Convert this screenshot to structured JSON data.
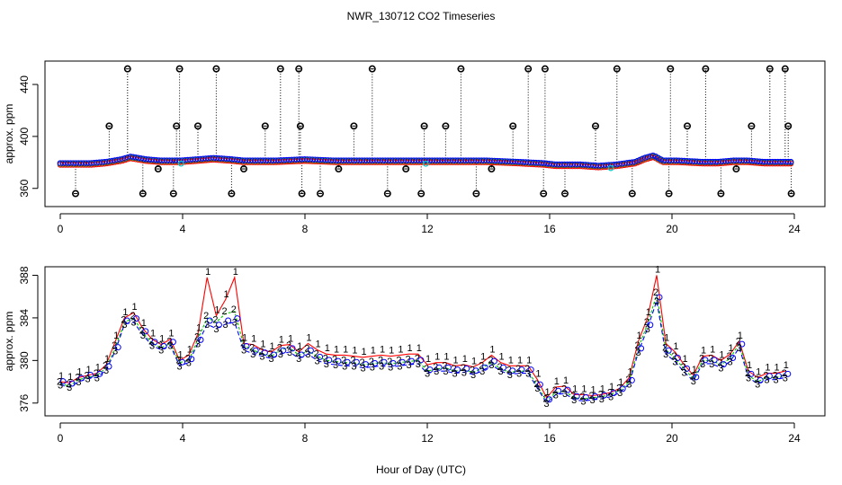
{
  "figure": {
    "title": "NWR_130712  CO2 Timeseries",
    "xlabel": "Hour of Day (UTC)"
  },
  "colors": {
    "series1": "#ff0000",
    "series2": "#00cc00",
    "series3": "#0000ff",
    "flagged": "#00cccc",
    "outlier": "#000000",
    "axis": "#000000"
  },
  "chart_data": [
    {
      "type": "scatter",
      "panel": "top",
      "ylabel": "approx. ppm",
      "xlim": [
        -0.5,
        25
      ],
      "ylim": [
        346,
        458
      ],
      "xticks": [
        0,
        4,
        8,
        12,
        16,
        20,
        24
      ],
      "yticks": [
        360,
        400,
        440
      ],
      "baseline_series": [
        {
          "name": "1",
          "x": [
            0,
            0.5,
            1,
            1.5,
            2,
            2.3,
            2.8,
            3.3,
            3.9,
            4.5,
            5,
            5.6,
            6,
            7,
            8,
            9,
            10,
            11,
            12,
            13,
            14,
            15,
            15.8,
            16.2,
            17,
            17.6,
            18.2,
            18.8,
            19.1,
            19.4,
            19.7,
            20.2,
            21,
            21.5,
            22,
            22.5,
            23,
            23.8
          ],
          "y": [
            379,
            379,
            379,
            380,
            382,
            384,
            382,
            381,
            381,
            382,
            383,
            382,
            381,
            381,
            382,
            381,
            381,
            381,
            381,
            381,
            381,
            380,
            379,
            378,
            378,
            377,
            378,
            380,
            383,
            385,
            381,
            381,
            380,
            380,
            381,
            381,
            380,
            380
          ]
        }
      ],
      "outliers": {
        "x": [
          0.5,
          1.6,
          2.2,
          2.7,
          3.2,
          3.7,
          3.8,
          3.9,
          4.5,
          5.1,
          5.6,
          6,
          6.7,
          7.2,
          7.8,
          7.85,
          7.9,
          8.5,
          9.1,
          9.6,
          10.2,
          10.7,
          11.3,
          11.8,
          11.9,
          12.6,
          13.1,
          13.6,
          14.1,
          14.8,
          15.3,
          15.8,
          15.85,
          16.5,
          17.5,
          18.2,
          18.7,
          19.9,
          19.95,
          20.5,
          21.1,
          21.6,
          22.1,
          22.6,
          23.2,
          23.7,
          23.8,
          23.9
        ],
        "y": [
          356,
          408,
          452,
          356,
          375,
          356,
          408,
          452,
          408,
          452,
          356,
          375,
          408,
          452,
          452,
          408,
          356,
          356,
          375,
          408,
          452,
          356,
          375,
          356,
          408,
          408,
          452,
          356,
          375,
          408,
          452,
          356,
          452,
          356,
          408,
          452,
          356,
          356,
          452,
          408,
          452,
          356,
          375,
          408,
          452,
          452,
          408,
          356
        ]
      }
    },
    {
      "type": "line",
      "panel": "bottom",
      "ylabel": "approx. ppm",
      "xlim": [
        -0.5,
        25
      ],
      "ylim": [
        374.8,
        388.8
      ],
      "xticks": [
        0,
        4,
        8,
        12,
        16,
        20,
        24
      ],
      "yticks": [
        376,
        380,
        384,
        388
      ],
      "x": [
        0,
        0.3,
        0.6,
        0.9,
        1.2,
        1.5,
        1.8,
        2.1,
        2.4,
        2.7,
        3.0,
        3.3,
        3.6,
        3.9,
        4.2,
        4.5,
        4.8,
        5.1,
        5.4,
        5.7,
        6.0,
        6.3,
        6.6,
        6.9,
        7.2,
        7.5,
        7.8,
        8.1,
        8.4,
        8.7,
        9.0,
        9.3,
        9.6,
        9.9,
        10.2,
        10.5,
        10.8,
        11.1,
        11.4,
        11.7,
        12.0,
        12.3,
        12.6,
        12.9,
        13.2,
        13.5,
        13.8,
        14.1,
        14.4,
        14.7,
        15.0,
        15.3,
        15.6,
        15.9,
        16.2,
        16.5,
        16.8,
        17.1,
        17.4,
        17.7,
        18.0,
        18.3,
        18.6,
        18.9,
        19.2,
        19.5,
        19.8,
        20.1,
        20.4,
        20.7,
        21.0,
        21.3,
        21.6,
        21.9,
        22.2,
        22.5,
        22.8,
        23.1,
        23.4,
        23.7
      ],
      "series": [
        {
          "name": "1",
          "values": [
            378.0,
            377.9,
            378.4,
            378.6,
            378.8,
            379.6,
            381.8,
            384.0,
            384.5,
            383.0,
            382.0,
            381.5,
            382.0,
            380.0,
            380.5,
            382.5,
            387.8,
            384.2,
            385.7,
            387.8,
            381.6,
            381.5,
            381.0,
            380.8,
            381.4,
            381.5,
            380.8,
            381.6,
            381.0,
            380.6,
            380.5,
            380.5,
            380.4,
            380.3,
            380.4,
            380.5,
            380.4,
            380.5,
            380.6,
            380.6,
            379.6,
            379.8,
            379.8,
            379.5,
            379.6,
            379.4,
            379.8,
            380.5,
            379.8,
            379.5,
            379.5,
            379.5,
            378.2,
            376.5,
            377.5,
            377.6,
            376.8,
            376.8,
            376.7,
            376.8,
            377.0,
            377.4,
            378.4,
            381.8,
            384.0,
            388.0,
            381.6,
            380.8,
            379.6,
            378.6,
            380.4,
            380.5,
            380.0,
            380.6,
            381.8,
            379.0,
            378.4,
            378.8,
            378.8,
            379.0
          ]
        },
        {
          "name": "2",
          "values": [
            377.8,
            377.6,
            378.2,
            378.4,
            378.6,
            379.3,
            381.2,
            383.6,
            384.0,
            382.6,
            381.6,
            381.2,
            381.6,
            379.8,
            380.0,
            382.0,
            384.0,
            383.6,
            384.4,
            384.6,
            381.4,
            381.0,
            380.6,
            380.4,
            381.0,
            381.2,
            380.5,
            380.9,
            380.4,
            380.0,
            379.9,
            379.8,
            379.8,
            379.6,
            379.7,
            379.8,
            379.7,
            379.8,
            379.9,
            380.0,
            379.0,
            379.2,
            379.3,
            379.0,
            379.1,
            378.9,
            379.3,
            379.8,
            379.2,
            378.9,
            379.0,
            379.0,
            377.6,
            376.2,
            377.0,
            377.1,
            376.5,
            376.4,
            376.5,
            376.6,
            376.8,
            377.2,
            378.0,
            381.2,
            383.4,
            386.2,
            381.0,
            380.2,
            379.2,
            378.3,
            380.0,
            380.0,
            379.6,
            380.2,
            381.6,
            378.6,
            378.0,
            378.4,
            378.4,
            378.6
          ]
        },
        {
          "name": "3",
          "values": [
            377.7,
            377.5,
            378.0,
            378.3,
            378.4,
            379.1,
            380.9,
            383.4,
            383.6,
            382.4,
            381.4,
            381.0,
            381.4,
            379.5,
            379.8,
            381.6,
            383.4,
            383.0,
            383.4,
            383.6,
            381.0,
            380.6,
            380.4,
            380.2,
            380.6,
            380.8,
            380.2,
            380.6,
            380.0,
            379.7,
            379.6,
            379.5,
            379.5,
            379.3,
            379.4,
            379.5,
            379.4,
            379.5,
            379.6,
            379.7,
            378.8,
            379.0,
            379.0,
            378.8,
            378.9,
            378.7,
            379.0,
            379.6,
            379.0,
            378.7,
            378.8,
            378.8,
            377.4,
            376.0,
            376.8,
            376.9,
            376.3,
            376.2,
            376.3,
            376.4,
            376.6,
            377.0,
            377.8,
            380.8,
            383.0,
            385.6,
            380.6,
            379.9,
            378.9,
            378.1,
            379.7,
            379.7,
            379.3,
            379.9,
            381.2,
            378.4,
            377.8,
            378.2,
            378.2,
            378.4
          ]
        }
      ]
    }
  ]
}
